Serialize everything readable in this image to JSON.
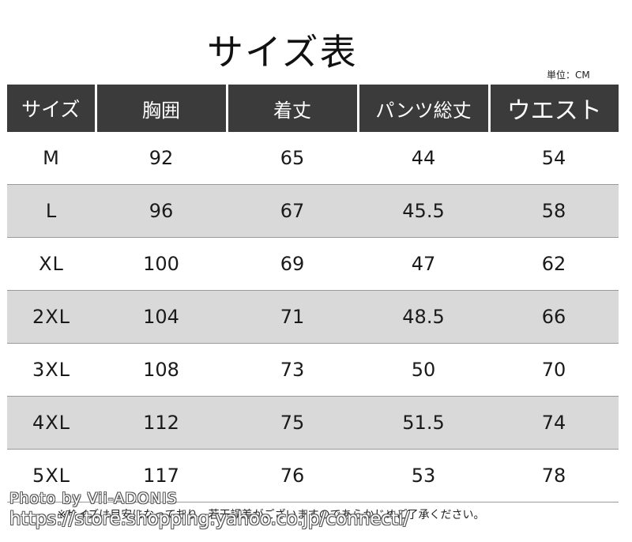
{
  "title": "サイズ表",
  "unit_label": "単位：CM",
  "table": {
    "headers": [
      "サイズ",
      "胸囲",
      "着丈",
      "パンツ総丈",
      "ウエスト"
    ],
    "rows": [
      [
        "M",
        "92",
        "65",
        "44",
        "54"
      ],
      [
        "L",
        "96",
        "67",
        "45.5",
        "58"
      ],
      [
        "XL",
        "100",
        "69",
        "47",
        "62"
      ],
      [
        "2XL",
        "104",
        "71",
        "48.5",
        "66"
      ],
      [
        "3XL",
        "108",
        "73",
        "50",
        "70"
      ],
      [
        "4XL",
        "112",
        "75",
        "51.5",
        "74"
      ],
      [
        "5XL",
        "117",
        "76",
        "53",
        "78"
      ]
    ]
  },
  "note": "※サイズは目安になっており、若干誤差がございますのであらかじめご了承ください。",
  "watermark": {
    "line1": "Photo by Vii-ADONIS",
    "line2": "https://store.shopping.yahoo.co.jp/connecti/"
  }
}
